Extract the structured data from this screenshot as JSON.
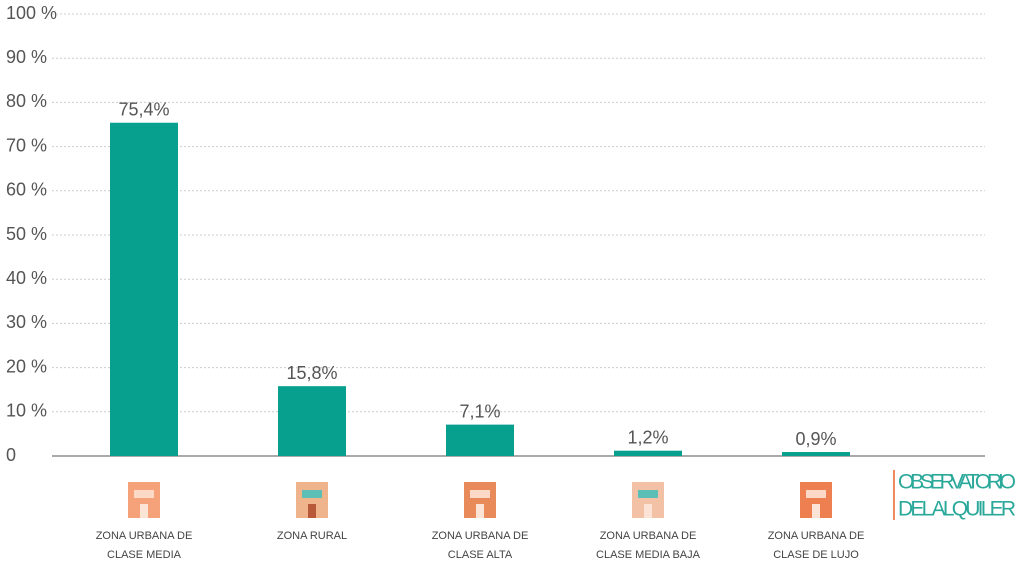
{
  "chart_data": {
    "type": "bar",
    "categories": [
      "ZONA URBANA DE\nCLASE MEDIA",
      "ZONA RURAL",
      "ZONA URBANA DE\nCLASE ALTA",
      "ZONA URBANA DE\nCLASE MEDIA BAJA",
      "ZONA URBANA DE\nCLASE DE LUJO"
    ],
    "values": [
      75.4,
      15.8,
      7.1,
      1.2,
      0.9
    ],
    "value_labels": [
      "75,4%",
      "15,8%",
      "7,1%",
      "1,2%",
      "0,9%"
    ],
    "color": "#07a08f",
    "ylim": [
      0,
      100
    ],
    "yticks": [
      0,
      {
        "value": 10,
        "label": "10 %"
      },
      {
        "value": 20,
        "label": "20 %"
      },
      {
        "value": 30,
        "label": "30 %"
      },
      {
        "value": 40,
        "label": "40 %"
      },
      {
        "value": 50,
        "label": "50 %"
      },
      {
        "value": 60,
        "label": "60 %"
      },
      {
        "value": 70,
        "label": "70 %"
      },
      {
        "value": 80,
        "label": "80 %"
      },
      {
        "value": 90,
        "label": "90 %"
      },
      {
        "value": 100,
        "label": "100 %"
      }
    ],
    "grid": true
  },
  "logo": {
    "line1": "OBSERVATORIO",
    "line2": "DEL ALQUILER"
  }
}
